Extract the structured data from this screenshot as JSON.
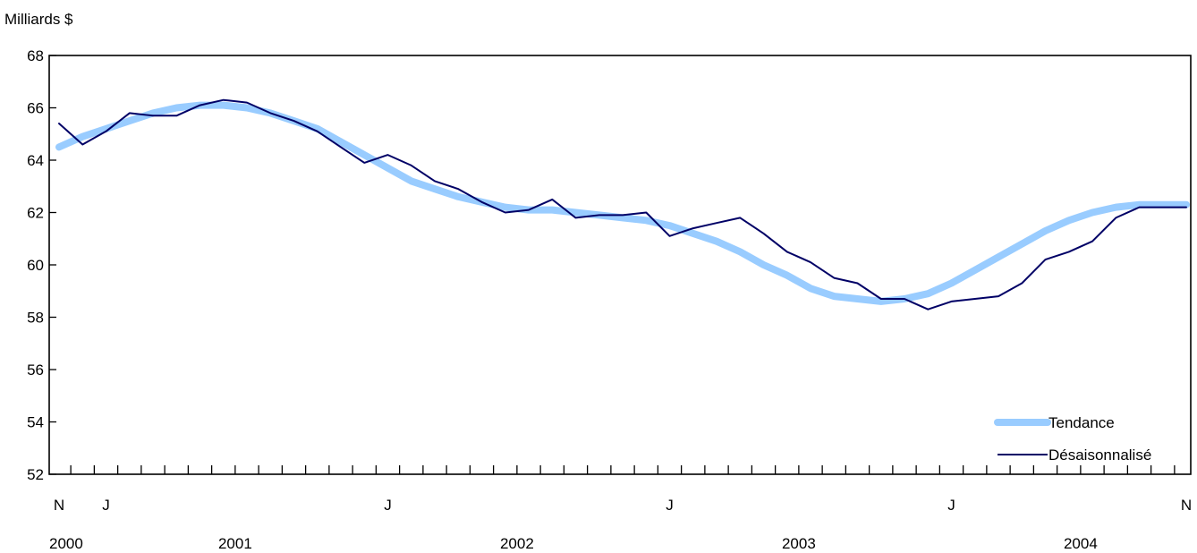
{
  "chart_data": {
    "type": "line",
    "ylabel": "Milliards $",
    "ylim": [
      52,
      68
    ],
    "yticks": [
      52,
      54,
      56,
      58,
      60,
      62,
      64,
      66,
      68
    ],
    "x": [
      "2000-11",
      "2000-12",
      "2001-01",
      "2001-02",
      "2001-03",
      "2001-04",
      "2001-05",
      "2001-06",
      "2001-07",
      "2001-08",
      "2001-09",
      "2001-10",
      "2001-11",
      "2001-12",
      "2002-01",
      "2002-02",
      "2002-03",
      "2002-04",
      "2002-05",
      "2002-06",
      "2002-07",
      "2002-08",
      "2002-09",
      "2002-10",
      "2002-11",
      "2002-12",
      "2003-01",
      "2003-02",
      "2003-03",
      "2003-04",
      "2003-05",
      "2003-06",
      "2003-07",
      "2003-08",
      "2003-09",
      "2003-10",
      "2003-11",
      "2003-12",
      "2004-01",
      "2004-02",
      "2004-03",
      "2004-04",
      "2004-05",
      "2004-06",
      "2004-07",
      "2004-08",
      "2004-09",
      "2004-10",
      "2004-11"
    ],
    "month_labels": [
      {
        "index": 0,
        "text": "N"
      },
      {
        "index": 2,
        "text": "J"
      },
      {
        "index": 14,
        "text": "J"
      },
      {
        "index": 26,
        "text": "J"
      },
      {
        "index": 38,
        "text": "J"
      },
      {
        "index": 48,
        "text": "N"
      }
    ],
    "year_labels": [
      {
        "index": 0,
        "text": "2000"
      },
      {
        "index": 7.5,
        "text": "2001"
      },
      {
        "index": 19.5,
        "text": "2002"
      },
      {
        "index": 31.5,
        "text": "2003"
      },
      {
        "index": 43.5,
        "text": "2004"
      }
    ],
    "series": [
      {
        "name": "Tendance",
        "color": "#99ccff",
        "style": "thick",
        "values": [
          64.5,
          64.9,
          65.2,
          65.5,
          65.8,
          66.0,
          66.1,
          66.1,
          66.0,
          65.8,
          65.5,
          65.2,
          64.7,
          64.2,
          63.7,
          63.2,
          62.9,
          62.6,
          62.4,
          62.2,
          62.1,
          62.1,
          62.0,
          61.9,
          61.8,
          61.7,
          61.5,
          61.2,
          60.9,
          60.5,
          60.0,
          59.6,
          59.1,
          58.8,
          58.7,
          58.6,
          58.7,
          58.9,
          59.3,
          59.8,
          60.3,
          60.8,
          61.3,
          61.7,
          62.0,
          62.2,
          62.3,
          62.3,
          62.3
        ]
      },
      {
        "name": "Désaisonnalisé",
        "color": "#000066",
        "style": "thin",
        "values": [
          65.4,
          64.6,
          65.1,
          65.8,
          65.7,
          65.7,
          66.1,
          66.3,
          66.2,
          65.8,
          65.5,
          65.1,
          64.5,
          63.9,
          64.2,
          63.8,
          63.2,
          62.9,
          62.4,
          62.0,
          62.1,
          62.5,
          61.8,
          61.9,
          61.9,
          62.0,
          61.1,
          61.4,
          61.6,
          61.8,
          61.2,
          60.5,
          60.1,
          59.5,
          59.3,
          58.7,
          58.7,
          58.3,
          58.6,
          58.7,
          58.8,
          59.3,
          60.2,
          60.5,
          60.9,
          61.8,
          62.2,
          62.2,
          62.2
        ]
      }
    ],
    "legend_position": "bottom-right",
    "grid": false
  }
}
